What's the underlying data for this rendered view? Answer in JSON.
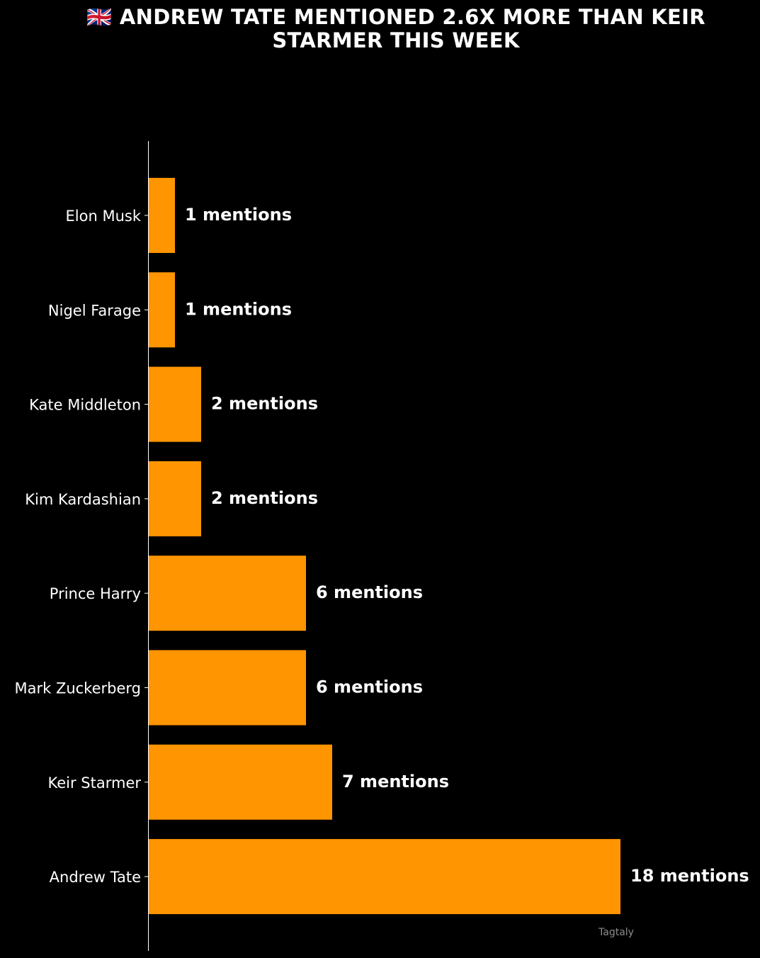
{
  "chart_data": {
    "type": "bar",
    "orientation": "horizontal",
    "title_lines": [
      "🇬🇧 ANDREW TATE MENTIONED 2.6X MORE THAN KEIR",
      "STARMER THIS WEEK"
    ],
    "categories": [
      "Elon Musk",
      "Nigel Farage",
      "Kate Middleton",
      "Kim Kardashian",
      "Prince Harry",
      "Mark Zuckerberg",
      "Keir Starmer",
      "Andrew Tate"
    ],
    "values": [
      1,
      1,
      2,
      2,
      6,
      6,
      7,
      18
    ],
    "value_labels": [
      "1 mentions",
      "1 mentions",
      "2 mentions",
      "2 mentions",
      "6 mentions",
      "6 mentions",
      "7 mentions",
      "18 mentions"
    ],
    "bar_color": "#ff9500",
    "background": "#000000",
    "text_color": "#ffffff",
    "watermark": "Tagtaly",
    "xlabel": "",
    "ylabel": "",
    "xlim": [
      0,
      18
    ],
    "grid": false,
    "legend": "none"
  }
}
